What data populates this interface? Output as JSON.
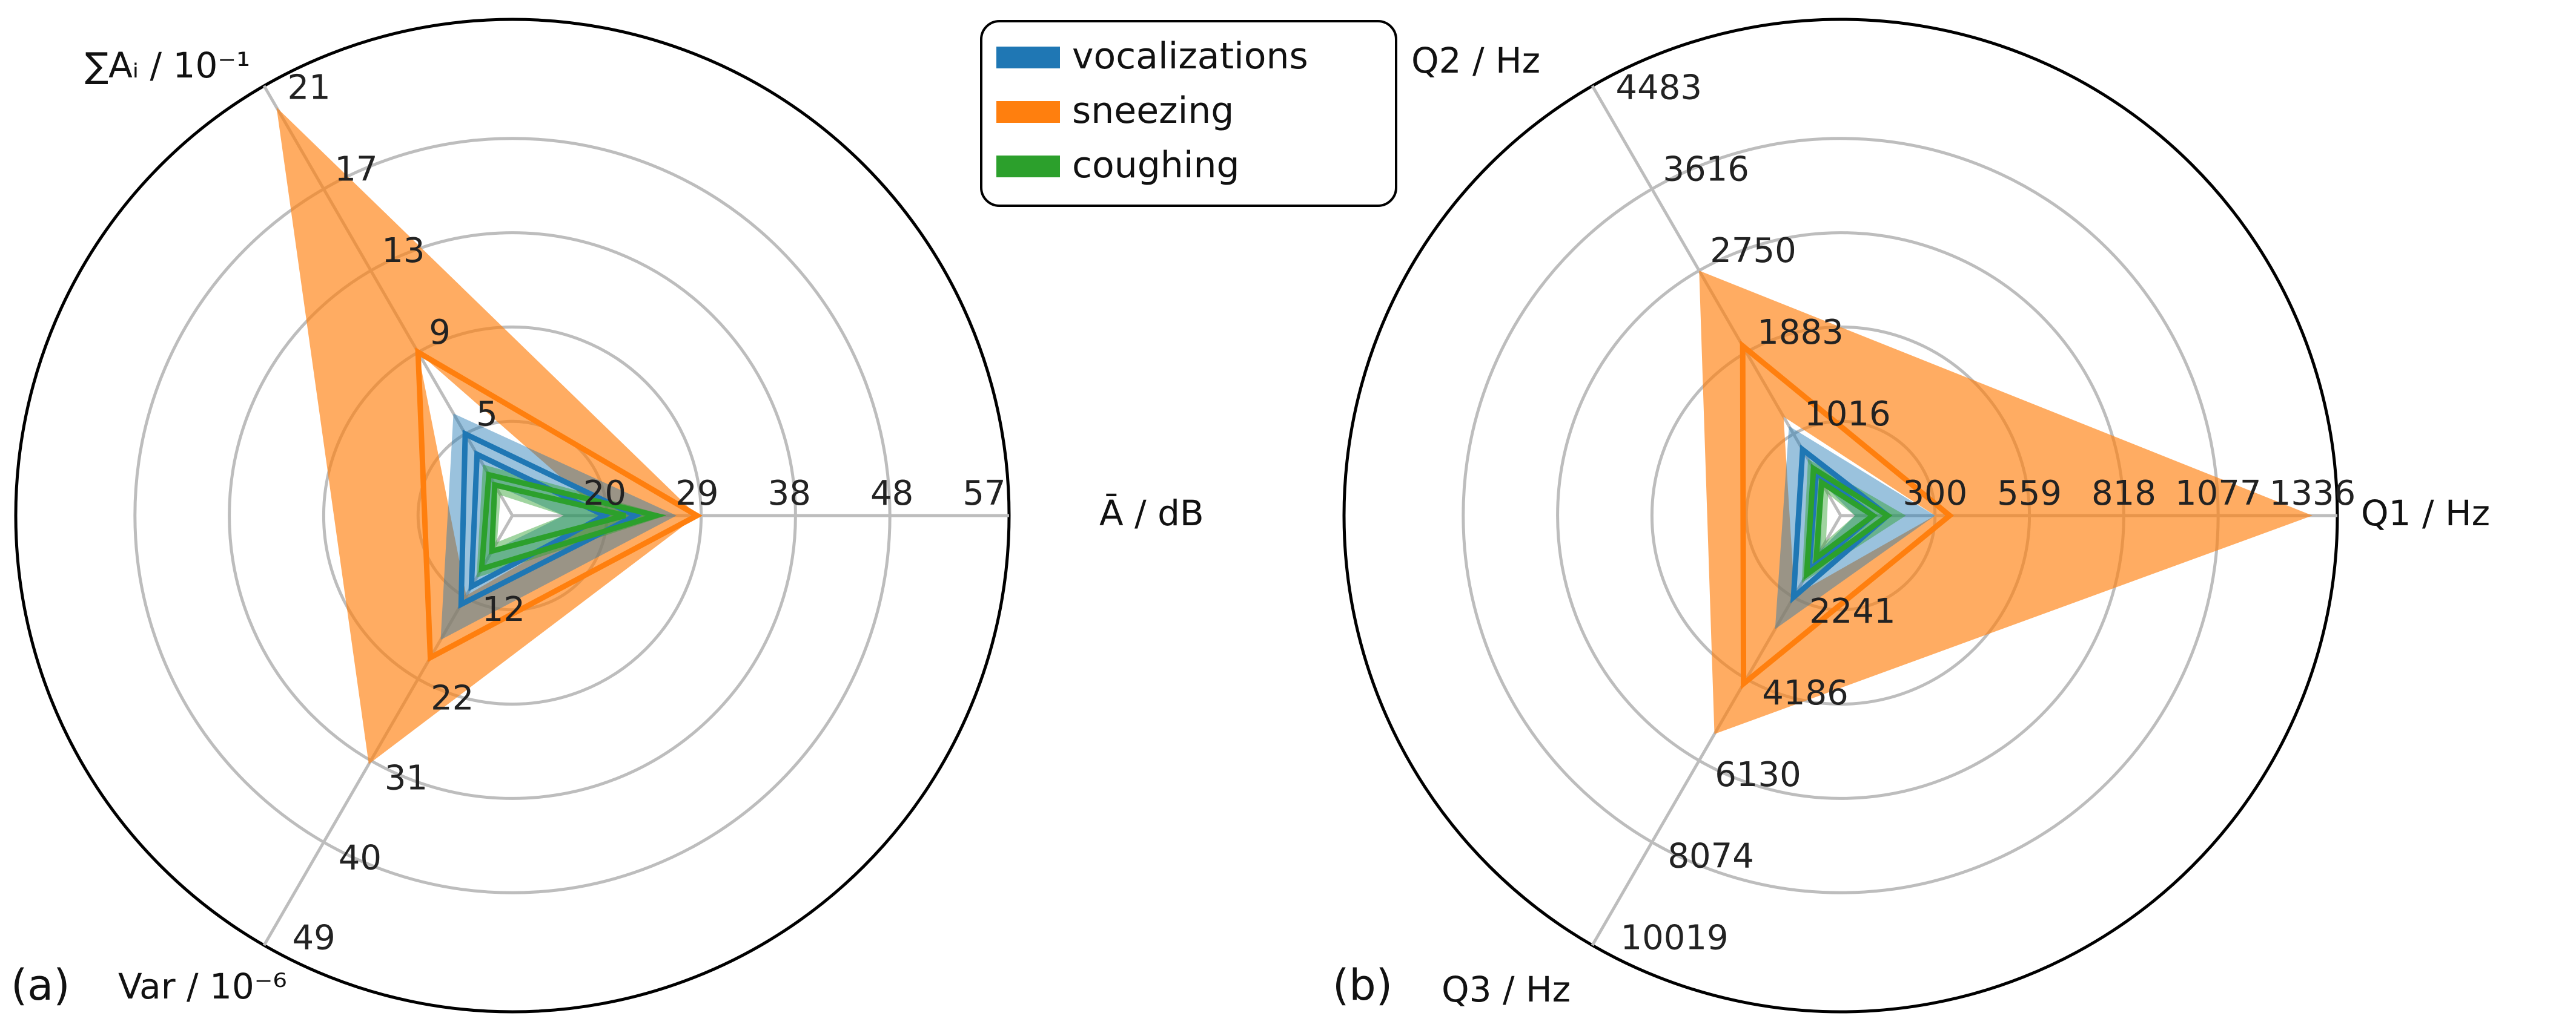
{
  "chart_data": [
    {
      "type": "radar",
      "panel_label": "(a)",
      "axes": [
        {
          "name": "Ā / dB",
          "ticks": [
            "20",
            "29",
            "38",
            "48",
            "57"
          ],
          "range": [
            11,
            57
          ]
        },
        {
          "name": "∑Aᵢ / 10⁻¹",
          "ticks": [
            "5",
            "9",
            "13",
            "17",
            "21"
          ],
          "range": [
            1,
            21
          ]
        },
        {
          "name": "Var / 10⁻⁶",
          "ticks": [
            "12",
            "22",
            "31",
            "40",
            "49"
          ],
          "range": [
            3,
            49
          ]
        }
      ],
      "series": [
        {
          "name": "vocalizations",
          "color": "#1f77b4",
          "lines": [
            [
              23,
              5.0,
              13
            ],
            [
              20,
              4.0,
              11
            ]
          ],
          "band": [
            [
              27,
              6.0,
              17
            ],
            [
              16,
              2.5,
              7
            ]
          ]
        },
        {
          "name": "sneezing",
          "color": "#ff7f0e",
          "lines": [
            [
              29,
              9.0,
              19
            ]
          ],
          "band": [
            [
              29,
              21.0,
              31
            ],
            [
              20,
              9.0,
              12
            ]
          ]
        },
        {
          "name": "coughing",
          "color": "#2ca02c",
          "lines": [
            [
              25,
              3.0,
              9
            ],
            [
              22,
              2.5,
              7
            ]
          ],
          "band": [
            [
              26,
              3.5,
              10
            ],
            [
              16,
              2.0,
              6
            ]
          ]
        }
      ]
    },
    {
      "type": "radar",
      "panel_label": "(b)",
      "axes": [
        {
          "name": "Q1 / Hz",
          "ticks": [
            "300",
            "559",
            "818",
            "1077",
            "1336"
          ],
          "range": [
            41,
            1336
          ]
        },
        {
          "name": "Q2 / Hz",
          "ticks": [
            "1016",
            "1883",
            "2750",
            "3616",
            "4483"
          ],
          "range": [
            150,
            4483
          ]
        },
        {
          "name": "Q3 / Hz",
          "ticks": [
            "2241",
            "4186",
            "6130",
            "8074",
            "10019"
          ],
          "range": [
            297,
            10019
          ]
        }
      ],
      "series": [
        {
          "name": "vocalizations",
          "color": "#1f77b4",
          "lines": [
            [
              170,
              850,
              2241
            ],
            [
              130,
              600,
              1600
            ]
          ],
          "band": [
            [
              300,
              1100,
              3000
            ],
            [
              80,
              500,
              1100
            ]
          ]
        },
        {
          "name": "sneezing",
          "color": "#ff7f0e",
          "lines": [
            [
              340,
              1950,
              4300
            ]
          ],
          "band": [
            [
              1336,
              2750,
              5500
            ],
            [
              300,
              1200,
              2200
            ]
          ]
        },
        {
          "name": "coughing",
          "color": "#2ca02c",
          "lines": [
            [
              170,
              650,
              1700
            ],
            [
              130,
              500,
              1300
            ]
          ],
          "band": [
            [
              220,
              750,
              1900
            ],
            [
              80,
              380,
              900
            ]
          ]
        }
      ]
    }
  ],
  "legend": {
    "items": [
      {
        "name": "vocalizations",
        "color": "#1f77b4"
      },
      {
        "name": "sneezing",
        "color": "#ff7f0e"
      },
      {
        "name": "coughing",
        "color": "#2ca02c"
      }
    ]
  },
  "grid": true
}
